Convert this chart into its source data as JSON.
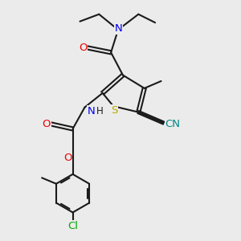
{
  "bg_color": "#ebebeb",
  "bond_color": "#1a1a1a",
  "colors": {
    "N": "#0000ee",
    "O": "#ee0000",
    "S": "#bbaa00",
    "Cl": "#00aa00",
    "C": "#1a1a1a",
    "CN_C": "#008888"
  },
  "font_size": 8.5,
  "fig_size": [
    3.0,
    3.0
  ],
  "dpi": 100
}
